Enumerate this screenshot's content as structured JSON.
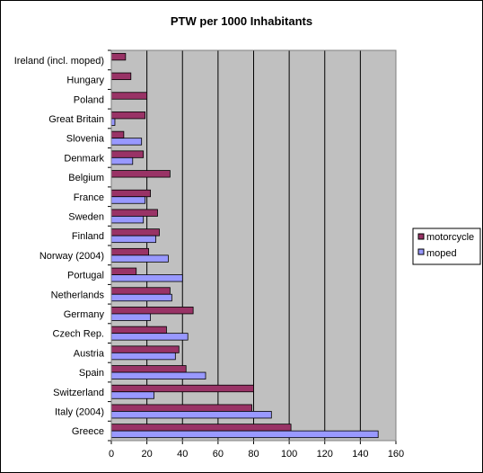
{
  "chart_data": {
    "type": "bar",
    "orientation": "horizontal",
    "title": "PTW per 1000 Inhabitants",
    "xlabel": "",
    "ylabel": "",
    "xlim": [
      0,
      160
    ],
    "x_ticks": [
      "0",
      "20",
      "40",
      "60",
      "80",
      "100",
      "120",
      "140",
      "160"
    ],
    "grid": "vertical",
    "legend_position": "right",
    "categories": [
      "Ireland (incl. moped)",
      "Hungary",
      "Poland",
      "Great Britain",
      "Slovenia",
      "Denmark",
      "Belgium",
      "France",
      "Sweden",
      "Finland",
      "Norway (2004)",
      "Portugal",
      "Netherlands",
      "Germany",
      "Czech Rep.",
      "Austria",
      "Spain",
      "Switzerland",
      "Italy (2004)",
      "Greece"
    ],
    "series": [
      {
        "name": "motorcycle",
        "color": "#993366",
        "values": [
          8,
          11,
          20,
          19,
          7,
          18,
          33,
          22,
          26,
          27,
          21,
          14,
          33,
          46,
          31,
          38,
          42,
          80,
          79,
          101
        ]
      },
      {
        "name": "moped",
        "color": "#9999FF",
        "values": [
          null,
          null,
          null,
          2,
          17,
          12,
          null,
          19,
          18,
          25,
          32,
          40,
          34,
          22,
          43,
          36,
          53,
          24,
          90,
          150
        ]
      }
    ],
    "plot_background": "#C0C0C0"
  }
}
